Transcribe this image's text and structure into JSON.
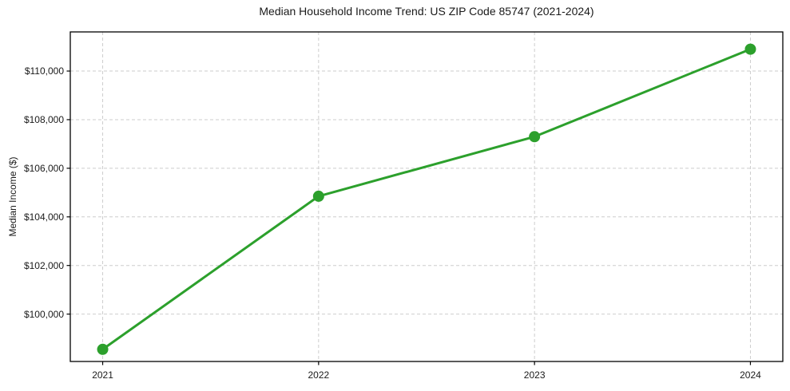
{
  "chart_data": {
    "type": "line",
    "title": "Median Household Income Trend: US ZIP Code 85747 (2021-2024)",
    "xlabel": "",
    "ylabel": "Median Income ($)",
    "x": [
      2021,
      2022,
      2023,
      2024
    ],
    "x_tick_labels": [
      "2021",
      "2022",
      "2023",
      "2024"
    ],
    "series": [
      {
        "name": "Median Household Income",
        "values": [
          98550,
          104850,
          107300,
          110900
        ]
      }
    ],
    "xlim": [
      2020.85,
      2024.15
    ],
    "ylim": [
      98050,
      111610
    ],
    "yticks": [
      100000,
      102000,
      104000,
      106000,
      108000,
      110000
    ],
    "y_tick_labels": [
      "$100,000",
      "$102,000",
      "$104,000",
      "$106,000",
      "$108,000",
      "$110,000"
    ],
    "grid": true,
    "grid_line_style": "dashed",
    "legend": false,
    "colors": {
      "line": "#2ca02c",
      "marker": "#2ca02c",
      "grid": "#cdcdcd",
      "spine": "#000000",
      "text": "#1a1a1a",
      "background": "#ffffff"
    }
  }
}
